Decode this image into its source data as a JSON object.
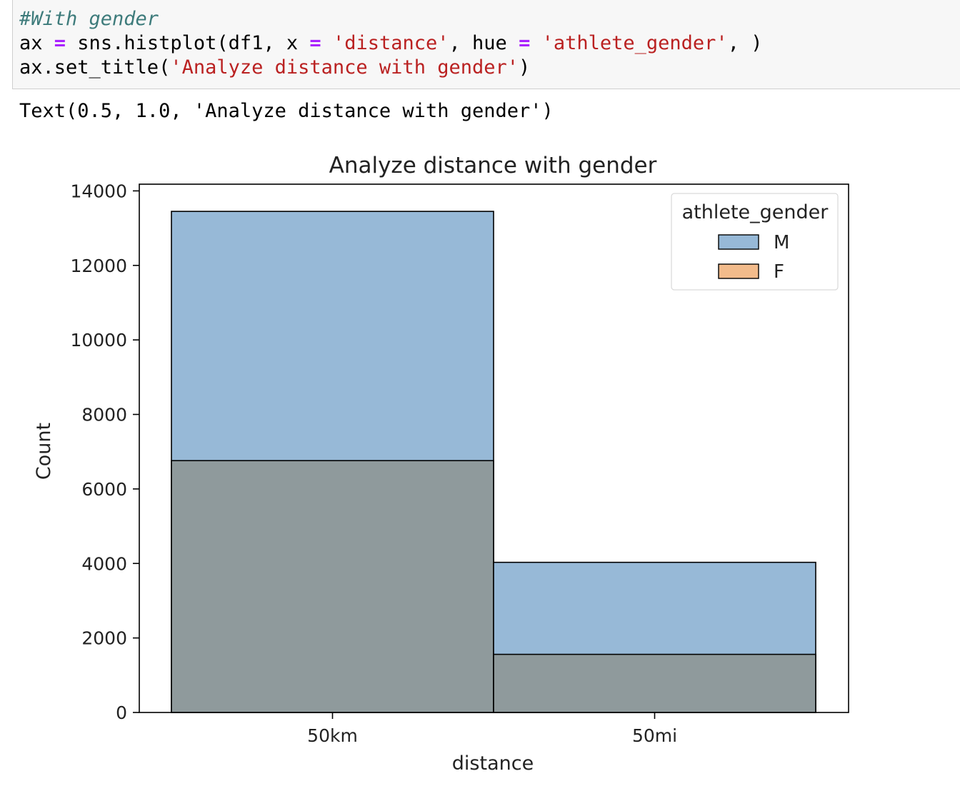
{
  "code_cell": {
    "line1_comment": "#With gender",
    "line2": {
      "p1": "ax ",
      "op1": "=",
      "p2": " sns.histplot(df1, x ",
      "op2": "=",
      "p3": " ",
      "s1": "'distance'",
      "p4": ", hue ",
      "op3": "=",
      "p5": " ",
      "s2": "'athlete_gender'",
      "p6": ", )"
    },
    "line3": {
      "p1": "ax.set_title(",
      "s1": "'Analyze distance with gender'",
      "p2": ")"
    }
  },
  "output_text": "Text(0.5, 1.0, 'Analyze distance with gender')",
  "colors": {
    "male_fill": "#97b9d7",
    "overlap_fill": "#8f9a9c",
    "female_swatch": "#f2bb8b",
    "male_swatch": "#97b9d7"
  },
  "chart_data": {
    "type": "bar",
    "title": "Analyze distance with gender",
    "xlabel": "distance",
    "ylabel": "Count",
    "categories": [
      "50km",
      "50mi"
    ],
    "series": [
      {
        "name": "M",
        "values": [
          13450,
          4030
        ]
      },
      {
        "name": "F",
        "values": [
          6760,
          1560
        ]
      }
    ],
    "ylim": [
      0,
      14180
    ],
    "yticks": [
      0,
      2000,
      4000,
      6000,
      8000,
      10000,
      12000,
      14000
    ],
    "ytick_labels": [
      "0",
      "2000",
      "4000",
      "6000",
      "8000",
      "10000",
      "12000",
      "14000"
    ],
    "legend": {
      "title": "athlete_gender",
      "entries": [
        "M",
        "F"
      ],
      "placement": "top-right"
    },
    "grid": false
  }
}
